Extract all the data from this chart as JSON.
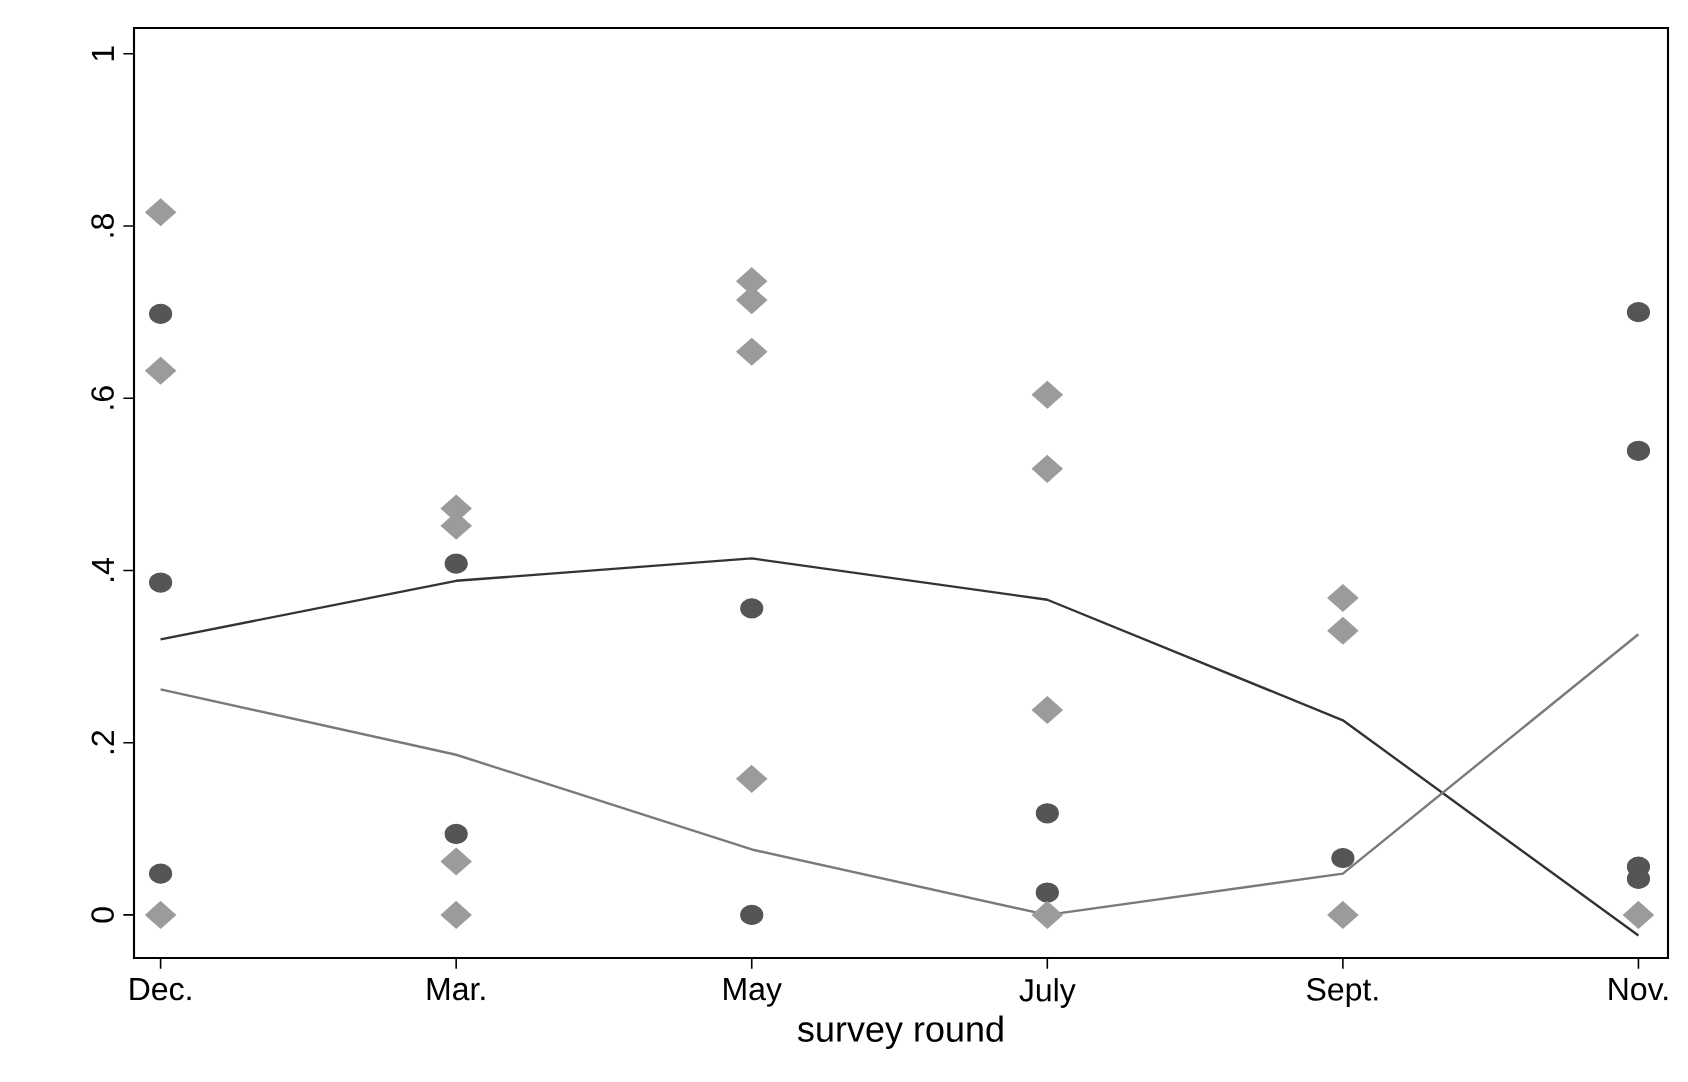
{
  "chart_data": {
    "type": "scatter",
    "xlabel": "survey round",
    "categories": [
      "Dec.",
      "Mar.",
      "May",
      "July",
      "Sept.",
      "Nov."
    ],
    "ylim": [
      -0.05,
      1.03
    ],
    "yticks": [
      0,
      {
        "value": 0.2,
        "label": ".2"
      },
      {
        "value": 0.4,
        "label": ".4"
      },
      {
        "value": 0.6,
        "label": ".6"
      },
      {
        "value": 0.8,
        "label": ".8"
      },
      1
    ],
    "grid": false,
    "series": [
      {
        "marker": "circle",
        "color": "#555555",
        "x": [
          "Dec.",
          "Dec.",
          "Dec.",
          "Mar.",
          "Mar.",
          "May",
          "May",
          "July",
          "July",
          "Sept.",
          "Nov.",
          "Nov.",
          "Nov.",
          "Nov."
        ],
        "values": [
          0.698,
          0.386,
          0.048,
          0.408,
          0.094,
          0.356,
          0,
          0.118,
          0.026,
          0.066,
          0.7,
          0.539,
          0.056,
          0.042
        ]
      },
      {
        "marker": "diamond",
        "color": "#9b9b9b",
        "x": [
          "Dec.",
          "Dec.",
          "Dec.",
          "Mar.",
          "Mar.",
          "Mar.",
          "Mar.",
          "May",
          "May",
          "May",
          "May",
          "July",
          "July",
          "July",
          "July",
          "Sept.",
          "Sept.",
          "Sept.",
          "Nov."
        ],
        "values": [
          0.816,
          0.632,
          0,
          0.472,
          0.452,
          0.062,
          0,
          0.736,
          0.714,
          0.654,
          0.158,
          0.604,
          0.518,
          0.238,
          0,
          0.368,
          0.33,
          0,
          0
        ]
      },
      {
        "type": "line",
        "marker": "none",
        "line_style": "solid",
        "color": "#333333",
        "values": [
          0.32,
          0.388,
          0.414,
          0.366,
          0.226,
          -0.024
        ]
      },
      {
        "type": "line",
        "marker": "none",
        "line_style": "solid",
        "color": "#7a7a7a",
        "values": [
          0.262,
          0.186,
          0.076,
          0,
          0.048,
          0.326
        ]
      }
    ]
  }
}
